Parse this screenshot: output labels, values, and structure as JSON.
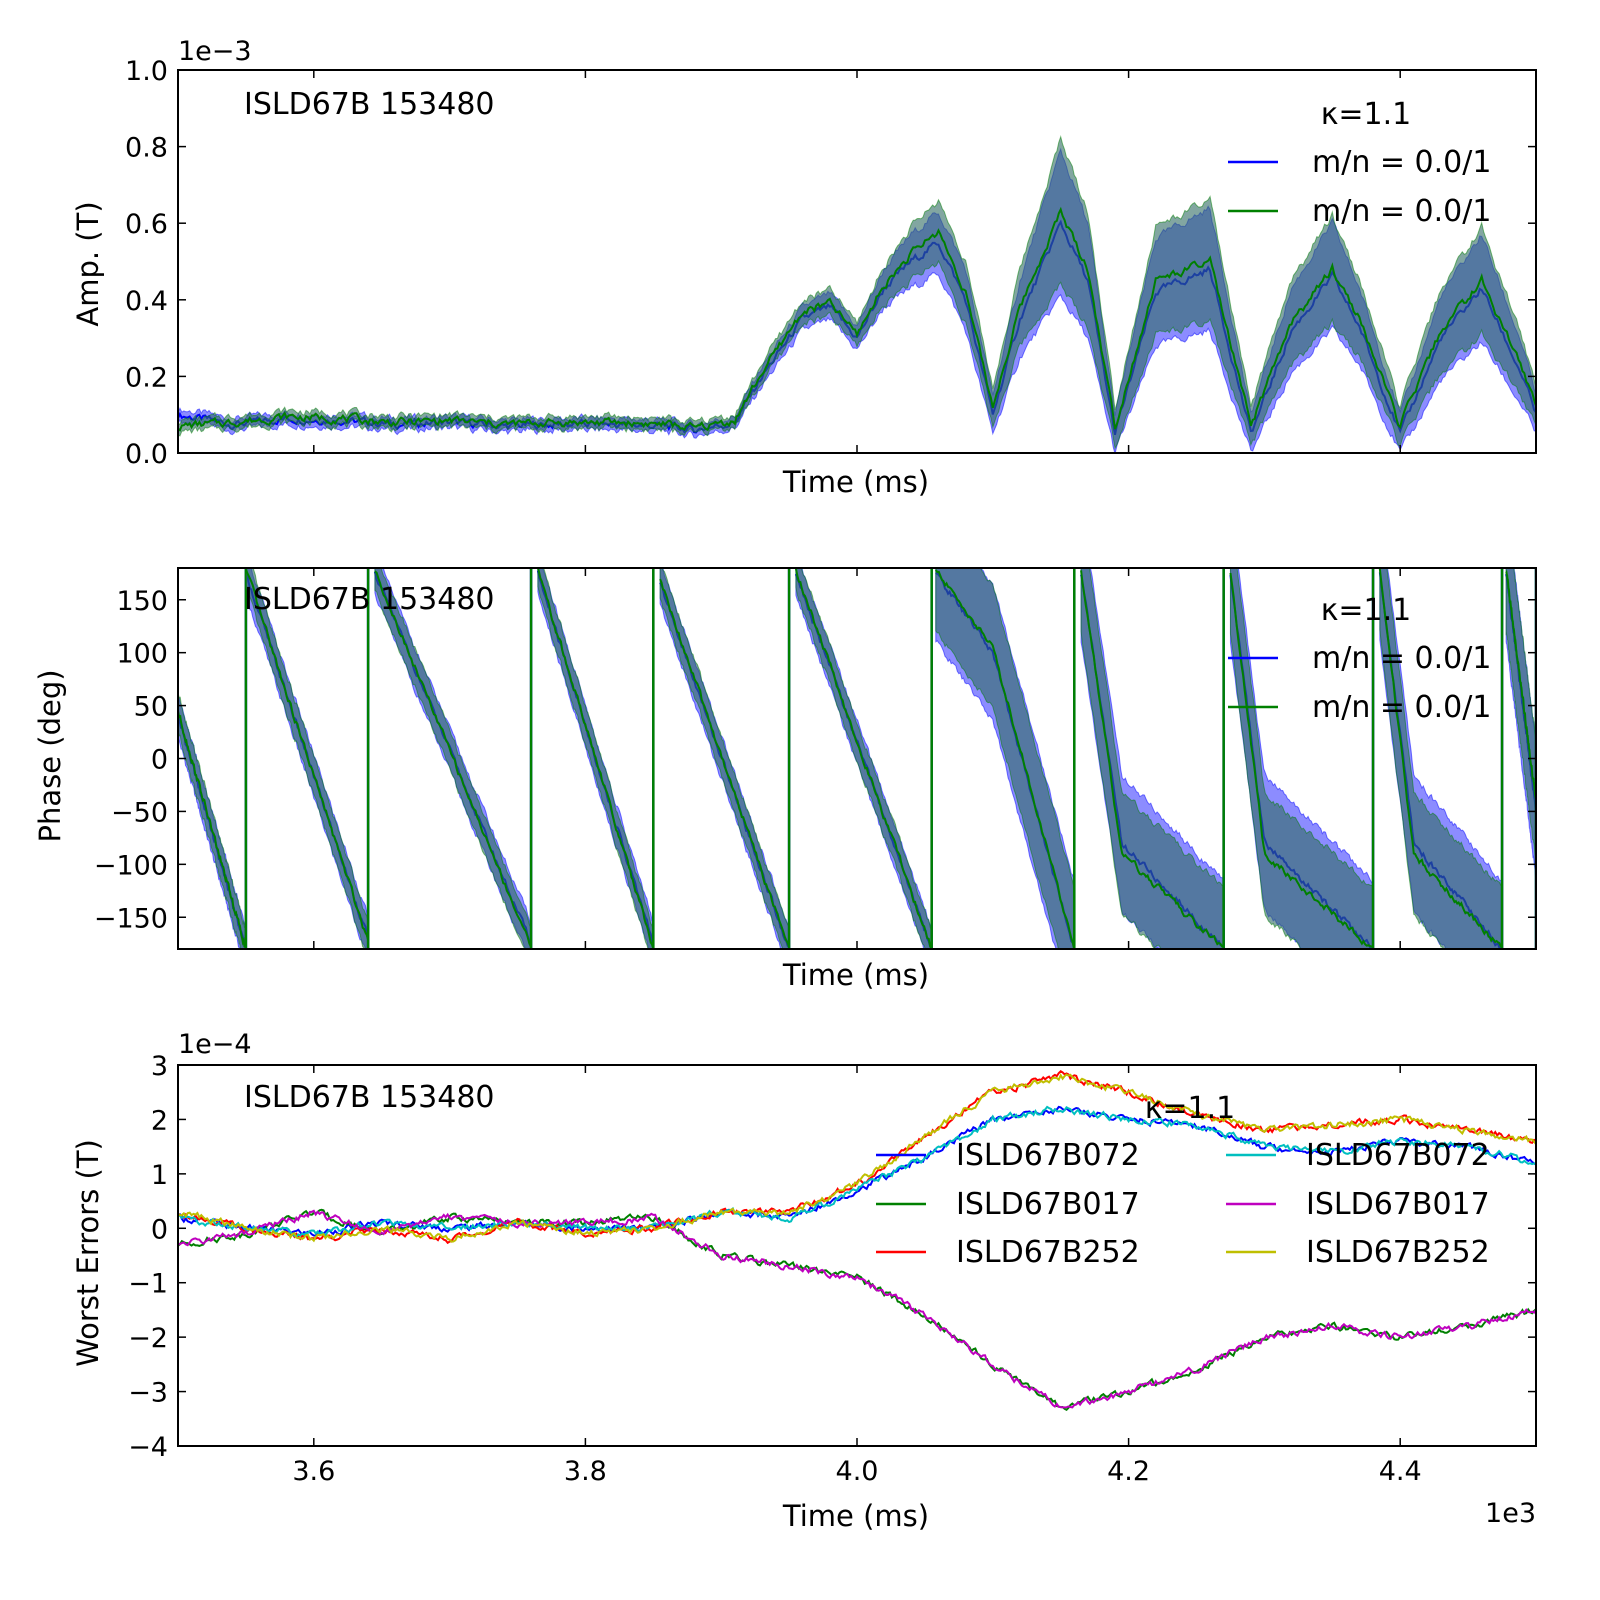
{
  "chart_data": [
    {
      "type": "line",
      "ylabel": "Amp. (T)",
      "xlabel": "Time (ms)",
      "annotation": "ISLD67B 153480",
      "offset_text": "1e−3",
      "xlim": [
        3500,
        4500
      ],
      "ylim": [
        0.0,
        1.0
      ],
      "y_ticks": [
        "0.0",
        "0.2",
        "0.4",
        "0.6",
        "0.8",
        "1.0"
      ],
      "legend": {
        "title": "κ=1.1",
        "position": "top-right",
        "entries": [
          "m/n = 0.0/1",
          "m/n = 0.0/1"
        ]
      },
      "band_color": "#2f6b63",
      "series": [
        {
          "name": "m/n = 0.0/1",
          "color": "#0000ff",
          "x": [
            3500,
            3540,
            3580,
            3620,
            3660,
            3700,
            3740,
            3780,
            3820,
            3860,
            3880,
            3910,
            3930,
            3960,
            3980,
            4000,
            4020,
            4040,
            4060,
            4080,
            4100,
            4120,
            4150,
            4170,
            4190,
            4220,
            4260,
            4290,
            4320,
            4350,
            4370,
            4400,
            4430,
            4460,
            4490,
            4500
          ],
          "y": [
            0.1,
            0.075,
            0.09,
            0.085,
            0.075,
            0.08,
            0.07,
            0.075,
            0.075,
            0.07,
            0.06,
            0.08,
            0.2,
            0.35,
            0.38,
            0.3,
            0.43,
            0.5,
            0.55,
            0.4,
            0.1,
            0.35,
            0.6,
            0.45,
            0.05,
            0.42,
            0.48,
            0.05,
            0.32,
            0.46,
            0.33,
            0.05,
            0.3,
            0.43,
            0.2,
            0.1
          ],
          "band": [
            0.015,
            0.015,
            0.015,
            0.015,
            0.015,
            0.015,
            0.015,
            0.015,
            0.015,
            0.015,
            0.015,
            0.015,
            0.025,
            0.03,
            0.035,
            0.03,
            0.05,
            0.07,
            0.08,
            0.08,
            0.05,
            0.1,
            0.19,
            0.15,
            0.05,
            0.14,
            0.16,
            0.05,
            0.11,
            0.14,
            0.1,
            0.05,
            0.11,
            0.14,
            0.08,
            0.05
          ]
        },
        {
          "name": "m/n = 0.0/1",
          "color": "#008000",
          "x": [
            3500,
            3540,
            3580,
            3620,
            3660,
            3700,
            3740,
            3780,
            3820,
            3860,
            3880,
            3910,
            3930,
            3960,
            3980,
            4000,
            4020,
            4040,
            4060,
            4080,
            4100,
            4120,
            4150,
            4170,
            4190,
            4220,
            4260,
            4290,
            4320,
            4350,
            4370,
            4400,
            4430,
            4460,
            4490,
            4500
          ],
          "y": [
            0.07,
            0.08,
            0.095,
            0.09,
            0.08,
            0.085,
            0.075,
            0.08,
            0.08,
            0.075,
            0.065,
            0.085,
            0.21,
            0.37,
            0.39,
            0.31,
            0.44,
            0.52,
            0.58,
            0.42,
            0.12,
            0.38,
            0.63,
            0.48,
            0.07,
            0.45,
            0.5,
            0.07,
            0.34,
            0.48,
            0.35,
            0.07,
            0.32,
            0.45,
            0.22,
            0.12
          ],
          "band": [
            0.015,
            0.015,
            0.015,
            0.015,
            0.015,
            0.015,
            0.015,
            0.015,
            0.015,
            0.015,
            0.015,
            0.015,
            0.025,
            0.03,
            0.035,
            0.03,
            0.05,
            0.07,
            0.08,
            0.08,
            0.05,
            0.1,
            0.19,
            0.15,
            0.05,
            0.14,
            0.16,
            0.05,
            0.11,
            0.14,
            0.1,
            0.05,
            0.11,
            0.14,
            0.08,
            0.05
          ]
        }
      ]
    },
    {
      "type": "line",
      "ylabel": "Phase (deg)",
      "xlabel": "Time (ms)",
      "annotation": "ISLD67B 153480",
      "xlim": [
        3500,
        4500
      ],
      "ylim": [
        -180,
        180
      ],
      "y_ticks": [
        "−150",
        "−100",
        "−50",
        "0",
        "50",
        "100",
        "150"
      ],
      "legend": {
        "title": "κ=1.1",
        "position": "top-right",
        "entries": [
          "m/n = 0.0/1",
          "m/n = 0.0/1"
        ]
      },
      "band_color": "#2f6b63",
      "series": [
        {
          "name": "m/n = 0.0/1",
          "color": "#0000ff",
          "segments": [
            {
              "x": [
                3500,
                3550
              ],
              "y": [
                40,
                -180
              ]
            },
            {
              "x": [
                3550,
                3640
              ],
              "y": [
                175,
                -170
              ]
            },
            {
              "x": [
                3645,
                3760
              ],
              "y": [
                175,
                -175
              ]
            },
            {
              "x": [
                3765,
                3850
              ],
              "y": [
                175,
                -175
              ]
            },
            {
              "x": [
                3855,
                3950
              ],
              "y": [
                165,
                -180
              ]
            },
            {
              "x": [
                3955,
                4055
              ],
              "y": [
                175,
                -180
              ]
            },
            {
              "x": [
                4058,
                4100,
                4160
              ],
              "y": [
                175,
                100,
                -180
              ]
            },
            {
              "x": [
                4165,
                4195,
                4270
              ],
              "y": [
                175,
                -80,
                -180
              ]
            },
            {
              "x": [
                4275,
                4300,
                4380
              ],
              "y": [
                175,
                -80,
                -180
              ]
            },
            {
              "x": [
                4385,
                4410,
                4475
              ],
              "y": [
                175,
                -80,
                -180
              ]
            },
            {
              "x": [
                4478,
                4500
              ],
              "y": [
                175,
                -50
              ]
            }
          ],
          "band": 20
        },
        {
          "name": "m/n = 0.0/1",
          "color": "#008000",
          "segments": [
            {
              "x": [
                3500,
                3550
              ],
              "y": [
                45,
                -180
              ]
            },
            {
              "x": [
                3550,
                3640
              ],
              "y": [
                178,
                -172
              ]
            },
            {
              "x": [
                3645,
                3760
              ],
              "y": [
                178,
                -178
              ]
            },
            {
              "x": [
                3765,
                3850
              ],
              "y": [
                178,
                -178
              ]
            },
            {
              "x": [
                3855,
                3950
              ],
              "y": [
                168,
                -180
              ]
            },
            {
              "x": [
                3955,
                4055
              ],
              "y": [
                178,
                -180
              ]
            },
            {
              "x": [
                4058,
                4100,
                4160
              ],
              "y": [
                178,
                105,
                -180
              ]
            },
            {
              "x": [
                4165,
                4195,
                4270
              ],
              "y": [
                178,
                -90,
                -180
              ]
            },
            {
              "x": [
                4275,
                4300,
                4380
              ],
              "y": [
                178,
                -90,
                -180
              ]
            },
            {
              "x": [
                4385,
                4410,
                4475
              ],
              "y": [
                178,
                -90,
                -180
              ]
            },
            {
              "x": [
                4478,
                4500
              ],
              "y": [
                178,
                -40
              ]
            }
          ],
          "band": 20
        }
      ]
    },
    {
      "type": "line",
      "ylabel": "Worst Errors (T)",
      "xlabel": "Time (ms)",
      "annotation": "ISLD67B 153480",
      "offset_text": "1e−4",
      "x_offset_text": "1e3",
      "xlim": [
        3500,
        4500
      ],
      "ylim": [
        -4,
        3
      ],
      "x_ticks": [
        "3.6",
        "3.8",
        "4.0",
        "4.2",
        "4.4"
      ],
      "y_ticks": [
        "−4",
        "−3",
        "−2",
        "−1",
        "0",
        "1",
        "2",
        "3"
      ],
      "legend": {
        "title": "κ=1.1",
        "position": "right",
        "columns": 2
      },
      "series": [
        {
          "name": "ISLD67B072",
          "color": "#0000ff",
          "x": [
            3500,
            3550,
            3600,
            3650,
            3700,
            3750,
            3800,
            3850,
            3900,
            3950,
            4000,
            4050,
            4100,
            4150,
            4200,
            4250,
            4300,
            4350,
            4400,
            4450,
            4500
          ],
          "y": [
            0.2,
            0.0,
            -0.1,
            0.1,
            0.0,
            0.1,
            0.0,
            0.0,
            0.3,
            0.2,
            0.7,
            1.3,
            2.0,
            2.2,
            2.0,
            1.9,
            1.5,
            1.4,
            1.6,
            1.5,
            1.2
          ]
        },
        {
          "name": "ISLD67B017",
          "color": "#008000",
          "x": [
            3500,
            3550,
            3600,
            3650,
            3700,
            3750,
            3800,
            3850,
            3900,
            3950,
            4000,
            4050,
            4100,
            4150,
            4200,
            4250,
            4300,
            4350,
            4400,
            4450,
            4500
          ],
          "y": [
            -0.3,
            -0.1,
            0.3,
            -0.1,
            0.2,
            0.1,
            0.1,
            0.2,
            -0.5,
            -0.7,
            -0.9,
            -1.6,
            -2.5,
            -3.3,
            -3.0,
            -2.6,
            -2.0,
            -1.8,
            -2.0,
            -1.8,
            -1.5
          ]
        },
        {
          "name": "ISLD67B252",
          "color": "#ff0000",
          "x": [
            3500,
            3550,
            3600,
            3650,
            3700,
            3750,
            3800,
            3850,
            3900,
            3950,
            4000,
            4050,
            4100,
            4150,
            4200,
            4250,
            4300,
            4350,
            4400,
            4450,
            4500
          ],
          "y": [
            0.3,
            0.0,
            -0.2,
            0.0,
            -0.2,
            0.1,
            -0.1,
            0.0,
            0.3,
            0.3,
            0.8,
            1.7,
            2.5,
            2.8,
            2.5,
            2.1,
            1.8,
            1.9,
            2.0,
            1.8,
            1.6
          ]
        },
        {
          "name": "ISLD67B072",
          "color": "#00bfbf",
          "x": [
            3500,
            3550,
            3600,
            3650,
            3700,
            3750,
            3800,
            3850,
            3900,
            3950,
            4000,
            4050,
            4100,
            4150,
            4200,
            4250,
            4300,
            4350,
            4400,
            4450,
            4500
          ],
          "y": [
            0.2,
            0.0,
            -0.1,
            0.1,
            0.0,
            0.1,
            0.0,
            0.0,
            0.3,
            0.2,
            0.7,
            1.3,
            2.0,
            2.2,
            2.0,
            1.9,
            1.5,
            1.4,
            1.6,
            1.5,
            1.2
          ]
        },
        {
          "name": "ISLD67B017",
          "color": "#bf00bf",
          "x": [
            3500,
            3550,
            3600,
            3650,
            3700,
            3750,
            3800,
            3850,
            3900,
            3950,
            4000,
            4050,
            4100,
            4150,
            4200,
            4250,
            4300,
            4350,
            4400,
            4450,
            4500
          ],
          "y": [
            -0.3,
            -0.1,
            0.3,
            -0.1,
            0.2,
            0.1,
            0.1,
            0.2,
            -0.5,
            -0.7,
            -0.9,
            -1.6,
            -2.5,
            -3.3,
            -3.0,
            -2.6,
            -2.0,
            -1.8,
            -2.0,
            -1.8,
            -1.5
          ]
        },
        {
          "name": "ISLD67B252",
          "color": "#bfbf00",
          "x": [
            3500,
            3550,
            3600,
            3650,
            3700,
            3750,
            3800,
            3850,
            3900,
            3950,
            4000,
            4050,
            4100,
            4150,
            4200,
            4250,
            4300,
            4350,
            4400,
            4450,
            4500
          ],
          "y": [
            0.3,
            0.0,
            -0.2,
            0.0,
            -0.2,
            0.1,
            -0.1,
            0.0,
            0.3,
            0.3,
            0.8,
            1.7,
            2.5,
            2.8,
            2.5,
            2.1,
            1.8,
            1.9,
            2.0,
            1.8,
            1.6
          ]
        }
      ]
    }
  ]
}
